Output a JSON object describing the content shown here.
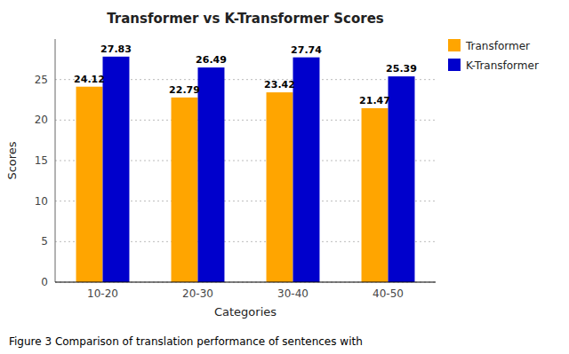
{
  "chart_data": {
    "type": "bar",
    "title": "Transformer vs K-Transformer Scores",
    "xlabel": "Categories",
    "ylabel": "Scores",
    "caption": "Figure 3 Comparison of translation performance of sentences with",
    "categories": [
      "10-20",
      "20-30",
      "30-40",
      "40-50"
    ],
    "series": [
      {
        "name": "Transformer",
        "color": "#FFA500",
        "values": [
          24.12,
          22.79,
          23.42,
          21.47
        ]
      },
      {
        "name": "K-Transformer",
        "color": "#0000CC",
        "values": [
          27.83,
          26.49,
          27.74,
          25.39
        ]
      }
    ],
    "ylim": [
      0,
      30
    ],
    "yticks": [
      0,
      5,
      10,
      15,
      20,
      25
    ],
    "grid": true,
    "legend": "upper right",
    "data_labels": true
  }
}
